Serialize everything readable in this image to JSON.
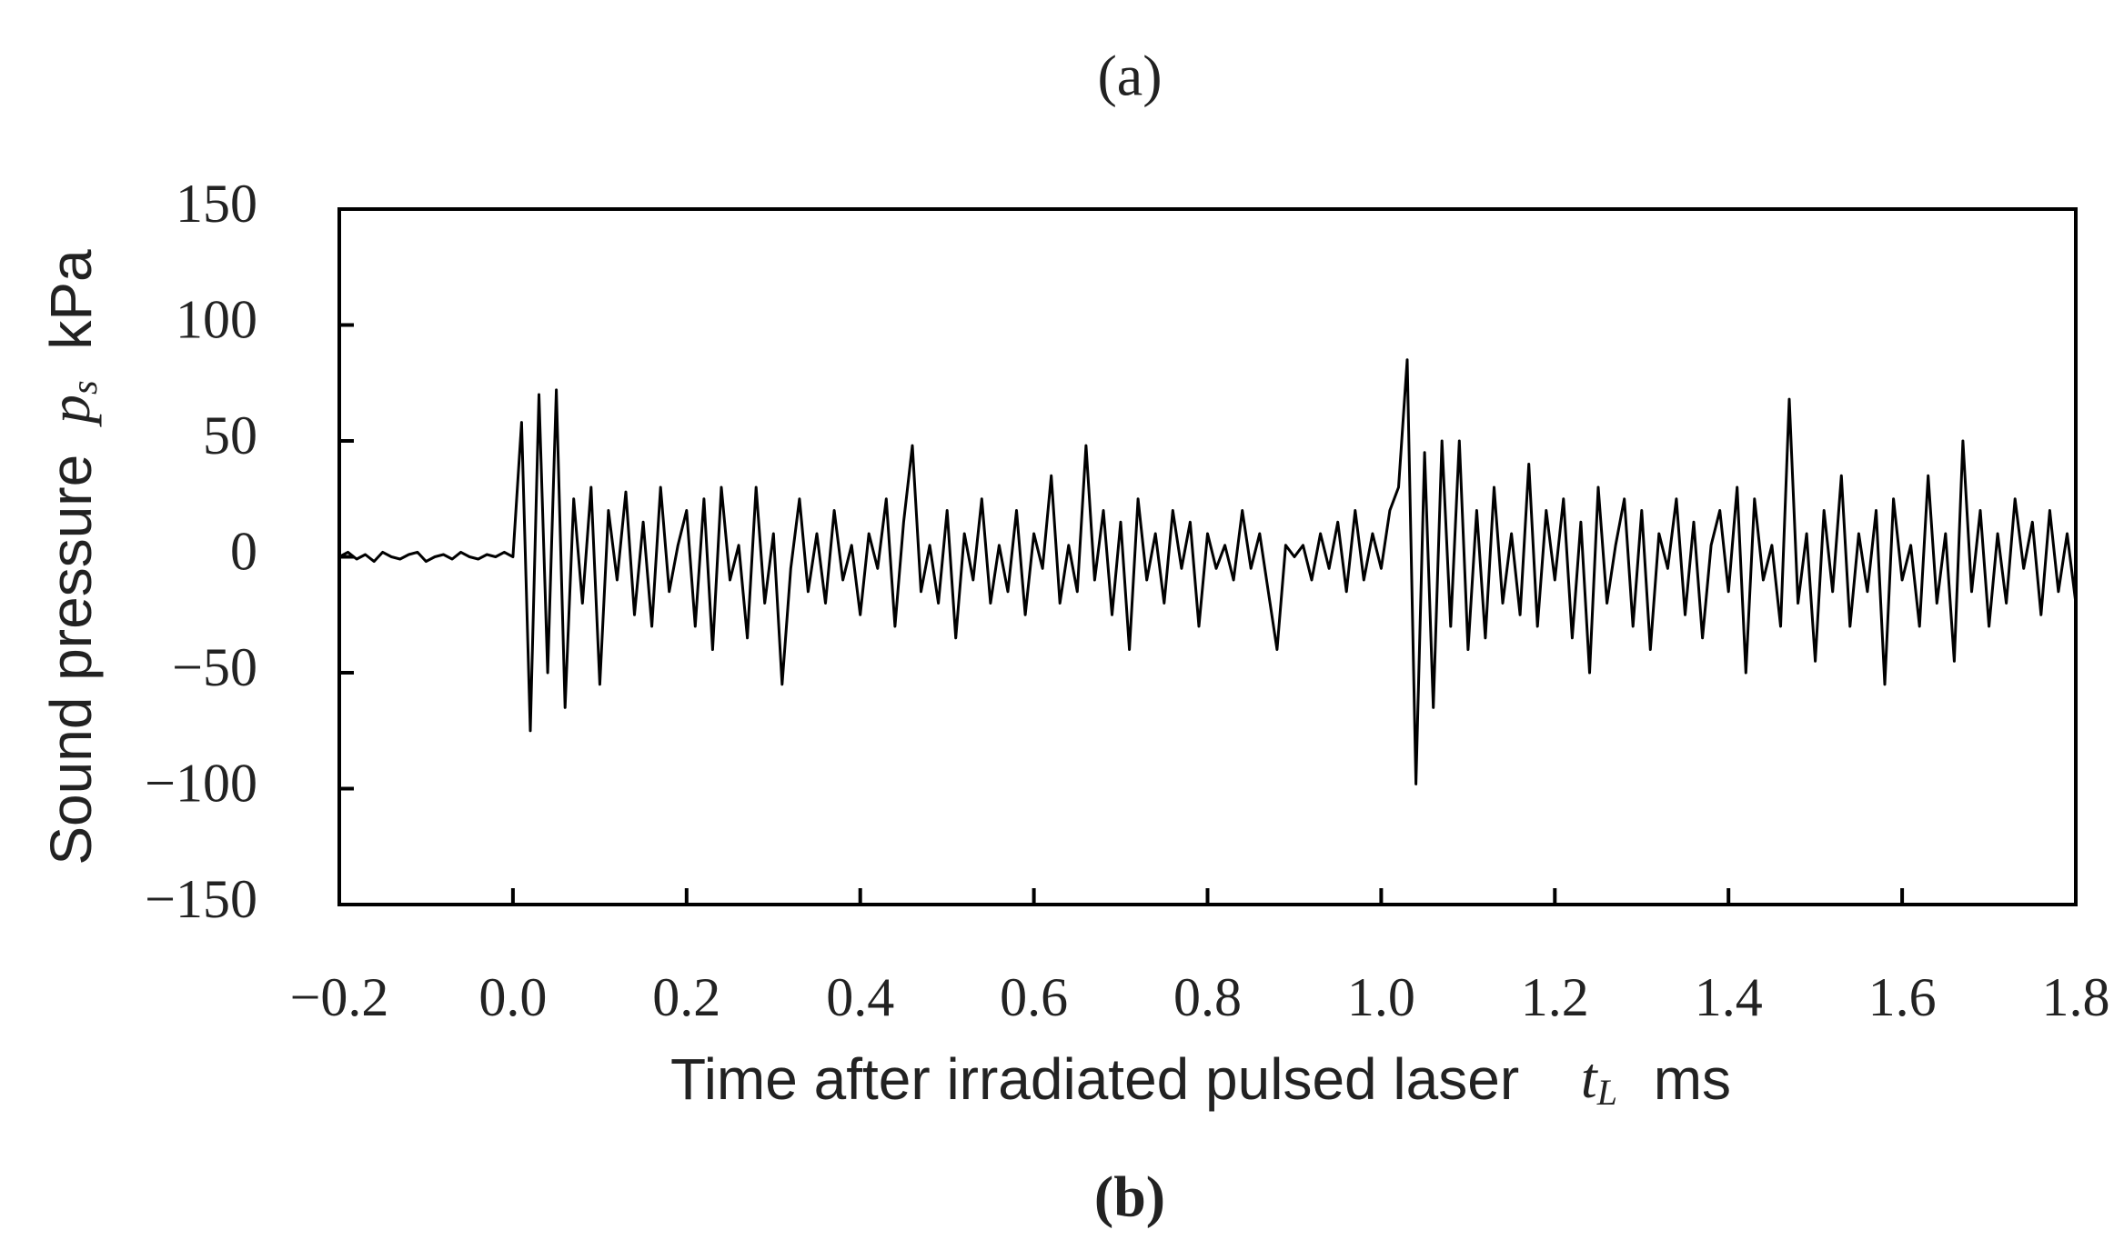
{
  "chart_data": {
    "type": "line",
    "top_label": "(a)",
    "bottom_label": "(b)",
    "y_label": "Sound pressure",
    "y_symbol": "p",
    "y_subscript": "s",
    "y_unit": "kPa",
    "x_label": "Time after irradiated pulsed laser",
    "x_symbol": "t",
    "x_subscript": "L",
    "x_unit": "ms",
    "color": "#000000",
    "xlim": [
      -0.2,
      1.8
    ],
    "ylim": [
      -150,
      150
    ],
    "xticks": [
      {
        "value": -0.2,
        "label": "−0.2"
      },
      {
        "value": 0,
        "label": "0.0"
      },
      0.2,
      0.4,
      0.6,
      0.8,
      {
        "value": 1,
        "label": "1.0"
      },
      1.2,
      1.4,
      1.6,
      1.8
    ],
    "yticks": [
      {
        "value": -150,
        "label": "−150"
      },
      {
        "value": -100,
        "label": "−100"
      },
      {
        "value": -50,
        "label": "−50"
      },
      0,
      50,
      100,
      150
    ],
    "x": [
      -0.2,
      -0.19,
      -0.18,
      -0.17,
      -0.16,
      -0.15,
      -0.14,
      -0.13,
      -0.12,
      -0.11,
      -0.1,
      -0.09,
      -0.08,
      -0.07,
      -0.06,
      -0.05,
      -0.04,
      -0.03,
      -0.02,
      -0.01,
      0,
      0.01,
      0.02,
      0.03,
      0.04,
      0.05,
      0.06,
      0.07,
      0.08,
      0.09,
      0.1,
      0.11,
      0.12,
      0.13,
      0.14,
      0.15,
      0.16,
      0.17,
      0.18,
      0.19,
      0.2,
      0.21,
      0.22,
      0.23,
      0.24,
      0.25,
      0.26,
      0.27,
      0.28,
      0.29,
      0.3,
      0.31,
      0.32,
      0.33,
      0.34,
      0.35,
      0.36,
      0.37,
      0.38,
      0.39,
      0.4,
      0.41,
      0.42,
      0.43,
      0.44,
      0.45,
      0.46,
      0.47,
      0.48,
      0.49,
      0.5,
      0.51,
      0.52,
      0.53,
      0.54,
      0.55,
      0.56,
      0.57,
      0.58,
      0.59,
      0.6,
      0.61,
      0.62,
      0.63,
      0.64,
      0.65,
      0.66,
      0.67,
      0.68,
      0.69,
      0.7,
      0.71,
      0.72,
      0.73,
      0.74,
      0.75,
      0.76,
      0.77,
      0.78,
      0.79,
      0.8,
      0.81,
      0.82,
      0.83,
      0.84,
      0.85,
      0.86,
      0.87,
      0.88,
      0.89,
      0.9,
      0.91,
      0.92,
      0.93,
      0.94,
      0.95,
      0.96,
      0.97,
      0.98,
      0.99,
      1,
      1.01,
      1.02,
      1.03,
      1.04,
      1.05,
      1.06,
      1.07,
      1.08,
      1.09,
      1.1,
      1.11,
      1.12,
      1.13,
      1.14,
      1.15,
      1.16,
      1.17,
      1.18,
      1.19,
      1.2,
      1.21,
      1.22,
      1.23,
      1.24,
      1.25,
      1.26,
      1.27,
      1.28,
      1.29,
      1.3,
      1.31,
      1.32,
      1.33,
      1.34,
      1.35,
      1.36,
      1.37,
      1.38,
      1.39,
      1.4,
      1.41,
      1.42,
      1.43,
      1.44,
      1.45,
      1.46,
      1.47,
      1.48,
      1.49,
      1.5,
      1.51,
      1.52,
      1.53,
      1.54,
      1.55,
      1.56,
      1.57,
      1.58,
      1.59,
      1.6,
      1.61,
      1.62,
      1.63,
      1.64,
      1.65,
      1.66,
      1.67,
      1.68,
      1.69,
      1.7,
      1.71,
      1.72,
      1.73,
      1.74,
      1.75,
      1.76,
      1.77,
      1.78,
      1.79,
      1.8
    ],
    "values": [
      0,
      2,
      -1,
      1,
      -2,
      2,
      0,
      -1,
      1,
      2,
      -2,
      0,
      1,
      -1,
      2,
      0,
      -1,
      1,
      0,
      2,
      0,
      58,
      -75,
      70,
      -50,
      72,
      -65,
      25,
      -20,
      30,
      -55,
      20,
      -10,
      28,
      -25,
      15,
      -30,
      30,
      -15,
      5,
      20,
      -30,
      25,
      -40,
      30,
      -10,
      5,
      -35,
      30,
      -20,
      10,
      -55,
      -5,
      25,
      -15,
      10,
      -20,
      20,
      -10,
      5,
      -25,
      10,
      -5,
      25,
      -30,
      15,
      48,
      -15,
      5,
      -20,
      20,
      -35,
      10,
      -10,
      25,
      -20,
      5,
      -15,
      20,
      -25,
      10,
      -5,
      35,
      -20,
      5,
      -15,
      48,
      -10,
      20,
      -25,
      15,
      -40,
      25,
      -10,
      10,
      -20,
      20,
      -5,
      15,
      -30,
      10,
      -5,
      5,
      -10,
      20,
      -5,
      10,
      -15,
      -40,
      5,
      0,
      5,
      -10,
      10,
      -5,
      15,
      -15,
      20,
      -10,
      10,
      -5,
      20,
      30,
      85,
      -98,
      45,
      -65,
      50,
      -30,
      50,
      -40,
      20,
      -35,
      30,
      -20,
      10,
      -25,
      40,
      -30,
      20,
      -10,
      25,
      -35,
      15,
      -50,
      30,
      -20,
      5,
      25,
      -30,
      20,
      -40,
      10,
      -5,
      25,
      -25,
      15,
      -35,
      5,
      20,
      -15,
      30,
      -50,
      25,
      -10,
      5,
      -30,
      68,
      -20,
      10,
      -45,
      20,
      -15,
      35,
      -30,
      10,
      -15,
      20,
      -55,
      25,
      -10,
      5,
      -30,
      35,
      -20,
      10,
      -45,
      50,
      -15,
      20,
      -30,
      10,
      -20,
      25,
      -5,
      15,
      -25,
      20,
      -15,
      10,
      -20
    ]
  }
}
